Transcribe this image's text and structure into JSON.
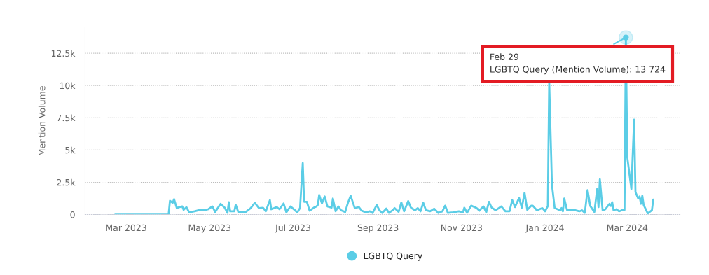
{
  "chart_data": {
    "type": "line",
    "ylabel": "Mention Volume",
    "legend": "bottom",
    "grid": "y",
    "marker": "none",
    "line_style": "solid",
    "xlim": [
      "2023-01-30",
      "2024-04-09"
    ],
    "xticks": [
      {
        "value": "2023-03-01",
        "label": "Mar 2023"
      },
      {
        "value": "2023-05-01",
        "label": "May 2023"
      },
      {
        "value": "2023-07-01",
        "label": "Jul 2023"
      },
      {
        "value": "2023-09-01",
        "label": "Sep 2023"
      },
      {
        "value": "2023-11-01",
        "label": "Nov 2023"
      },
      {
        "value": "2024-01-01",
        "label": "Jan 2024"
      },
      {
        "value": "2024-03-01",
        "label": "Mar 2024"
      }
    ],
    "ylim": [
      0,
      14500
    ],
    "yticks": [
      0,
      {
        "value": 2500,
        "label": "2.5k"
      },
      {
        "value": 5000,
        "label": "5k"
      },
      {
        "value": 7500,
        "label": "7.5k"
      },
      {
        "value": 10000,
        "label": "10k"
      },
      {
        "value": 12500,
        "label": "12.5k"
      }
    ],
    "annotations": [
      {
        "text": "Feb 29\nLGBTQ Query (Mention Volume): 13 724",
        "x": "2024-02-29",
        "y": 13724
      }
    ],
    "x": [
      "2023-02-21",
      "2023-04-01",
      "2023-04-02",
      "2023-04-04",
      "2023-04-05",
      "2023-04-07",
      "2023-04-09",
      "2023-04-11",
      "2023-04-12",
      "2023-04-14",
      "2023-04-16",
      "2023-04-20",
      "2023-04-23",
      "2023-04-27",
      "2023-04-30",
      "2023-05-03",
      "2023-05-05",
      "2023-05-09",
      "2023-05-12",
      "2023-05-14",
      "2023-05-15",
      "2023-05-16",
      "2023-05-19",
      "2023-05-20",
      "2023-05-22",
      "2023-05-27",
      "2023-05-31",
      "2023-06-03",
      "2023-06-06",
      "2023-06-09",
      "2023-06-11",
      "2023-06-14",
      "2023-06-15",
      "2023-06-19",
      "2023-06-21",
      "2023-06-24",
      "2023-06-26",
      "2023-06-29",
      "2023-07-02",
      "2023-07-04",
      "2023-07-06",
      "2023-07-08",
      "2023-07-09",
      "2023-07-11",
      "2023-07-13",
      "2023-07-16",
      "2023-07-18",
      "2023-07-19",
      "2023-07-20",
      "2023-07-22",
      "2023-07-24",
      "2023-07-26",
      "2023-07-29",
      "2023-07-30",
      "2023-08-01",
      "2023-08-03",
      "2023-08-05",
      "2023-08-08",
      "2023-08-10",
      "2023-08-12",
      "2023-08-15",
      "2023-08-18",
      "2023-08-20",
      "2023-08-23",
      "2023-08-26",
      "2023-08-28",
      "2023-08-31",
      "2023-09-02",
      "2023-09-04",
      "2023-09-07",
      "2023-09-09",
      "2023-09-12",
      "2023-09-13",
      "2023-09-16",
      "2023-09-18",
      "2023-09-20",
      "2023-09-23",
      "2023-09-25",
      "2023-09-28",
      "2023-09-30",
      "2023-10-02",
      "2023-10-04",
      "2023-10-06",
      "2023-10-09",
      "2023-10-12",
      "2023-10-15",
      "2023-10-18",
      "2023-10-20",
      "2023-10-22",
      "2023-10-26",
      "2023-10-30",
      "2023-11-02",
      "2023-11-03",
      "2023-11-05",
      "2023-11-08",
      "2023-11-12",
      "2023-11-14",
      "2023-11-16",
      "2023-11-17",
      "2023-11-19",
      "2023-11-21",
      "2023-11-23",
      "2023-11-26",
      "2023-11-30",
      "2023-12-03",
      "2023-12-06",
      "2023-12-08",
      "2023-12-10",
      "2023-12-13",
      "2023-12-15",
      "2023-12-17",
      "2023-12-19",
      "2023-12-22",
      "2023-12-23",
      "2023-12-26",
      "2023-12-30",
      "2024-01-01",
      "2024-01-03",
      "2024-01-04",
      "2024-01-06",
      "2024-01-08",
      "2024-01-12",
      "2024-01-13",
      "2024-01-14",
      "2024-01-15",
      "2024-01-17",
      "2024-01-22",
      "2024-01-26",
      "2024-01-28",
      "2024-01-30",
      "2024-02-01",
      "2024-02-03",
      "2024-02-06",
      "2024-02-08",
      "2024-02-09",
      "2024-02-10",
      "2024-02-12",
      "2024-02-14",
      "2024-02-17",
      "2024-02-18",
      "2024-02-19",
      "2024-02-20",
      "2024-02-22",
      "2024-02-24",
      "2024-02-26",
      "2024-02-28",
      "2024-02-29",
      "2024-03-01",
      "2024-03-04",
      "2024-03-06",
      "2024-03-07",
      "2024-03-09",
      "2024-03-10",
      "2024-03-11",
      "2024-03-12",
      "2024-03-13",
      "2024-03-16",
      "2024-03-17",
      "2024-03-19",
      "2024-03-20"
    ],
    "series": [
      {
        "name": "LGBTQ Query",
        "color": "#5bcde6",
        "values": [
          0,
          0,
          1070,
          910,
          1190,
          500,
          580,
          630,
          360,
          580,
          170,
          250,
          330,
          330,
          410,
          630,
          200,
          830,
          530,
          130,
          960,
          250,
          250,
          760,
          170,
          170,
          500,
          910,
          500,
          530,
          250,
          1120,
          410,
          580,
          410,
          860,
          170,
          630,
          360,
          170,
          500,
          3990,
          990,
          990,
          300,
          530,
          630,
          740,
          1520,
          860,
          1400,
          630,
          530,
          1240,
          250,
          630,
          330,
          200,
          910,
          1450,
          500,
          580,
          300,
          170,
          250,
          120,
          740,
          330,
          120,
          460,
          130,
          360,
          500,
          200,
          940,
          250,
          1040,
          530,
          330,
          500,
          250,
          910,
          330,
          250,
          450,
          120,
          250,
          690,
          130,
          170,
          250,
          170,
          530,
          130,
          690,
          500,
          300,
          530,
          630,
          170,
          990,
          530,
          330,
          630,
          250,
          250,
          1120,
          580,
          1290,
          530,
          1680,
          360,
          690,
          690,
          330,
          500,
          250,
          660,
          10300,
          2310,
          500,
          330,
          500,
          250,
          1240,
          360,
          360,
          250,
          330,
          130,
          1900,
          660,
          200,
          1980,
          580,
          2730,
          330,
          410,
          830,
          660,
          960,
          330,
          410,
          250,
          330,
          360,
          13724,
          4460,
          1980,
          7360,
          1740,
          1240,
          1400,
          830,
          1450,
          740,
          80,
          170,
          330,
          1160
        ]
      }
    ]
  }
}
